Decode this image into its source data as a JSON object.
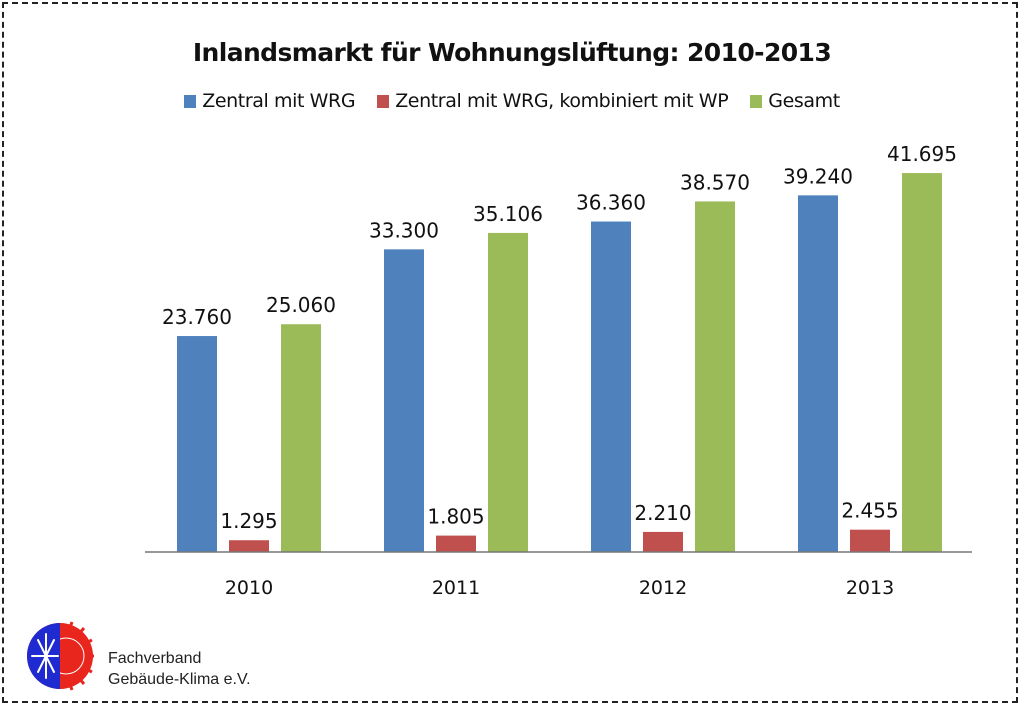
{
  "chart_data": {
    "type": "bar",
    "title": "Inlandsmarkt für Wohnungslüftung: 2010-2013",
    "xlabel": "",
    "ylabel": "",
    "categories": [
      "2010",
      "2011",
      "2012",
      "2013"
    ],
    "series": [
      {
        "name": "Zentral mit WRG",
        "color": "#4f81bd",
        "values": [
          23760,
          33300,
          36360,
          39240
        ],
        "labels": [
          "23.760",
          "33.300",
          "36.360",
          "39.240"
        ]
      },
      {
        "name": "Zentral mit WRG, kombiniert mit WP",
        "color": "#c0504d",
        "values": [
          1295,
          1805,
          2210,
          2455
        ],
        "labels": [
          "1.295",
          "1.805",
          "2.210",
          "2.455"
        ]
      },
      {
        "name": "Gesamt",
        "color": "#9bbb59",
        "values": [
          25060,
          35106,
          38570,
          41695
        ],
        "labels": [
          "25.060",
          "35.106",
          "38.570",
          "41.695"
        ]
      }
    ],
    "ylim": [
      0,
      45000
    ],
    "grid": false,
    "legend_position": "top"
  },
  "footer": {
    "org_line1": "Fachverband",
    "org_line2": "Gebäude-Klima e.V."
  }
}
